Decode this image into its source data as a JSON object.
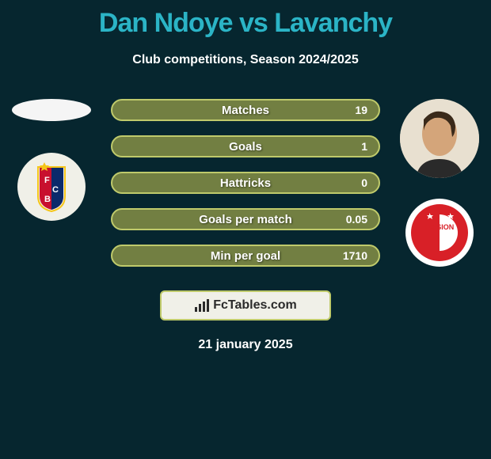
{
  "title": {
    "text": "Dan Ndoye vs Lavanchy",
    "color": "#2bb4c6",
    "fontsize": 34
  },
  "subtitle": {
    "text": "Club competitions, Season 2024/2025",
    "color": "#ffffff",
    "fontsize": 16
  },
  "background_color": "#06262f",
  "player_left": {
    "avatar_bg": "#f5f5f5",
    "avatar_shape": "ellipse",
    "club": {
      "name": "FC Basel",
      "bg": "#f0f0e8",
      "primary": "#0a2a6b",
      "secondary": "#c8102e",
      "accent": "#f5c518"
    }
  },
  "player_right": {
    "avatar_bg": "#d8c4a8",
    "avatar_shape": "circle",
    "club": {
      "name": "FC Sion",
      "bg": "#ffffff",
      "primary": "#d82027",
      "text_color": "#ffffff",
      "label": "FC SION"
    }
  },
  "bars": {
    "type": "horizontal-pill",
    "bg_color": "#727f42",
    "border_color": "#bfca6b",
    "text_color": "#ffffff",
    "label_fontsize": 15,
    "value_fontsize": 14,
    "items": [
      {
        "label": "Matches",
        "left": "",
        "right": "19"
      },
      {
        "label": "Goals",
        "left": "",
        "right": "1"
      },
      {
        "label": "Hattricks",
        "left": "",
        "right": "0"
      },
      {
        "label": "Goals per match",
        "left": "",
        "right": "0.05"
      },
      {
        "label": "Min per goal",
        "left": "",
        "right": "1710"
      }
    ]
  },
  "watermark": {
    "text": "FcTables.com",
    "bg": "#f0f0e8",
    "text_color": "#2a2a2a",
    "icon_color": "#2a2a2a",
    "border_color": "#bfca6b"
  },
  "date": {
    "text": "21 january 2025",
    "color": "#ffffff"
  }
}
